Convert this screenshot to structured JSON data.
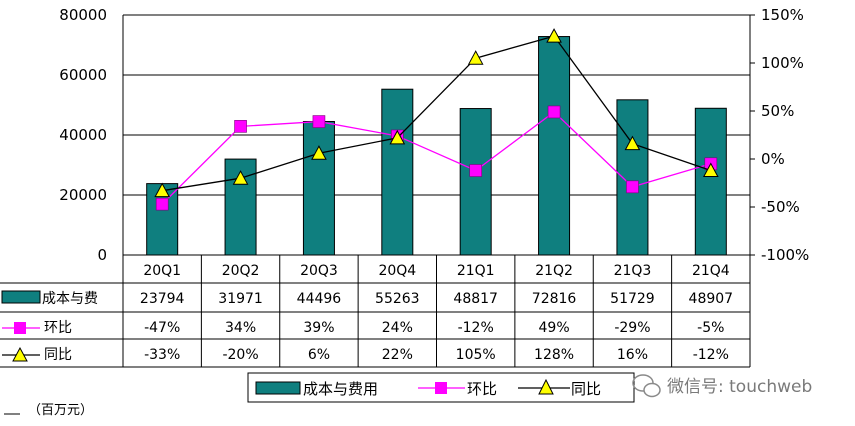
{
  "chart_data": {
    "type": "bar+line",
    "categories": [
      "20Q1",
      "20Q2",
      "20Q3",
      "20Q4",
      "21Q1",
      "21Q2",
      "21Q3",
      "21Q4"
    ],
    "bars": {
      "name": "成本与费用",
      "values": [
        23794,
        31971,
        44496,
        55263,
        48817,
        72816,
        51729,
        48907
      ],
      "color": "#0f7f7f"
    },
    "lines": [
      {
        "name": "环比",
        "values": [
          -47,
          34,
          39,
          24,
          -12,
          49,
          -29,
          -5
        ],
        "labels": [
          "-47%",
          "34%",
          "39%",
          "24%",
          "-12%",
          "49%",
          "-29%",
          "-5%"
        ],
        "color": "#ff00ff",
        "marker": "square"
      },
      {
        "name": "同比",
        "values": [
          -33,
          -20,
          6,
          22,
          105,
          128,
          16,
          -12
        ],
        "labels": [
          "-33%",
          "-20%",
          "6%",
          "22%",
          "105%",
          "128%",
          "16%",
          "-12%"
        ],
        "color": "#000000",
        "marker": "triangle",
        "marker_color": "#ffff00"
      }
    ],
    "left_axis": {
      "ylim": [
        0,
        80000
      ],
      "ticks": [
        "0",
        "20000",
        "40000",
        "60000",
        "80000"
      ]
    },
    "right_axis": {
      "ylim": [
        -100,
        150
      ],
      "ticks": [
        "-100%",
        "-50%",
        "0%",
        "50%",
        "100%",
        "150%"
      ]
    },
    "table_row_labels": [
      "成本与费",
      "环比",
      "同比"
    ],
    "legend": [
      "成本与费用",
      "环比",
      "同比"
    ],
    "unit_label": "（百万元）",
    "grid": true
  },
  "watermark": "微信号: touchweb"
}
